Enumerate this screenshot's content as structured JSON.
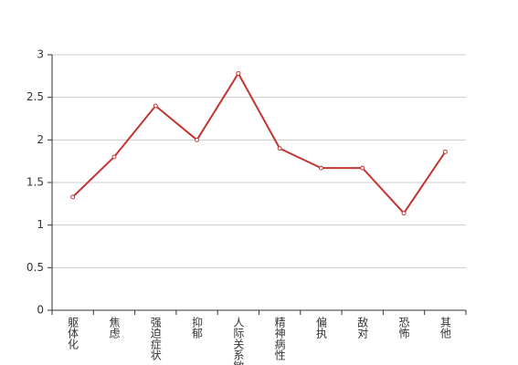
{
  "chart_data": {
    "type": "line",
    "categories": [
      "躯体化",
      "焦虑",
      "强迫症状",
      "抑郁",
      "人际关系敏感",
      "精神病性",
      "偏执",
      "敌对",
      "恐怖",
      "其他"
    ],
    "series": [
      {
        "color": "#c23531",
        "values": [
          1.33,
          1.8,
          2.4,
          2.0,
          2.78,
          1.9,
          1.67,
          1.67,
          1.14,
          1.86
        ]
      }
    ],
    "ylim": [
      0,
      3
    ],
    "yticks": [
      0,
      0.5,
      1,
      1.5,
      2,
      2.5,
      3
    ],
    "grid": true
  }
}
